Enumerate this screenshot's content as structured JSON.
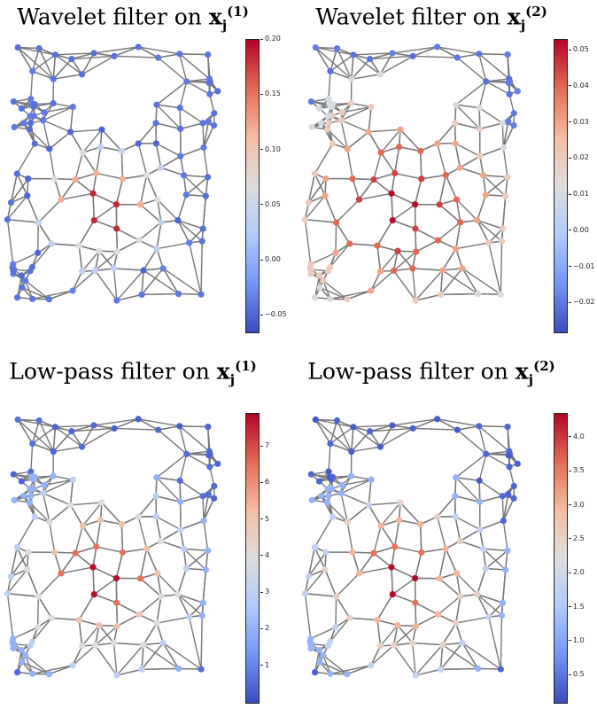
{
  "colormap": [
    "#3b4cc0",
    "#7396f5",
    "#b0cbfc",
    "#dddddd",
    "#f6bda2",
    "#e36c55",
    "#b40426"
  ],
  "edge_color": "#777777",
  "panels": [
    {
      "title_prefix": "Wavelet filter on ",
      "title_var": "x",
      "title_sub": "j",
      "title_sup": "(1)",
      "chart_data": {
        "type": "graph",
        "colorbar": {
          "min": -0.065,
          "max": 0.2,
          "ticks": [
            "0.20",
            "0.15",
            "0.10",
            "0.05",
            "0.00",
            "−0.05"
          ],
          "tick_values": [
            0.2,
            0.15,
            0.1,
            0.05,
            0.0,
            -0.05
          ]
        },
        "node_values": [
          0.198,
          0.185,
          0.12,
          0.07,
          0.04,
          -0.05,
          -0.04
        ]
      }
    },
    {
      "title_prefix": "Wavelet filter on ",
      "title_var": "x",
      "title_sub": "j",
      "title_sup": "(2)",
      "chart_data": {
        "type": "graph",
        "colorbar": {
          "min": -0.028,
          "max": 0.053,
          "ticks": [
            "0.05",
            "0.04",
            "0.03",
            "0.02",
            "0.01",
            "0.00",
            "−0.01",
            "−0.02"
          ],
          "tick_values": [
            0.05,
            0.04,
            0.03,
            0.02,
            0.01,
            0.0,
            -0.01,
            -0.02
          ]
        },
        "node_values": [
          0.052,
          0.045,
          0.04,
          0.03,
          0.02,
          0.01,
          -0.02
        ]
      }
    },
    {
      "title_prefix": "Low-pass filter on ",
      "title_var": "x",
      "title_sub": "j",
      "title_sup": "(1)",
      "chart_data": {
        "type": "graph",
        "colorbar": {
          "min": 0.0,
          "max": 7.9,
          "ticks": [
            "7",
            "6",
            "5",
            "4",
            "3",
            "2",
            "1"
          ],
          "tick_values": [
            7,
            6,
            5,
            4,
            3,
            2,
            1
          ]
        },
        "node_values": [
          7.8,
          6.5,
          5.0,
          4.0,
          3.0,
          2.0,
          0.5
        ]
      }
    },
    {
      "title_prefix": "Low-pass filter on ",
      "title_var": "x",
      "title_sub": "j",
      "title_sup": "(2)",
      "chart_data": {
        "type": "graph",
        "colorbar": {
          "min": 0.1,
          "max": 4.35,
          "ticks": [
            "4.0",
            "3.5",
            "3.0",
            "2.5",
            "2.0",
            "1.5",
            "1.0",
            "0.5"
          ],
          "tick_values": [
            4.0,
            3.5,
            3.0,
            2.5,
            2.0,
            1.5,
            1.0,
            0.5
          ]
        },
        "node_values": [
          4.3,
          3.6,
          3.0,
          2.5,
          1.8,
          1.2,
          0.3
        ]
      }
    }
  ]
}
